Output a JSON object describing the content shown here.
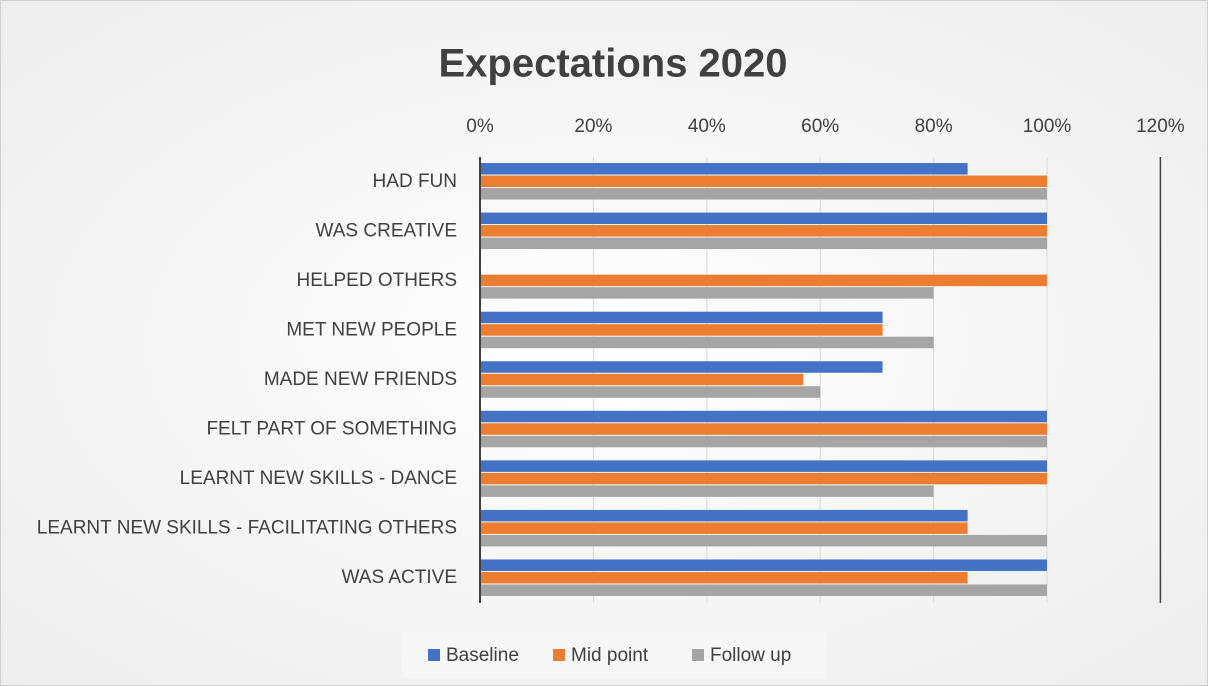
{
  "chart_data": {
    "type": "bar",
    "orientation": "horizontal",
    "title": "Expectations 2020",
    "categories": [
      "HAD FUN",
      "WAS CREATIVE",
      "HELPED OTHERS",
      "MET NEW PEOPLE",
      "MADE NEW FRIENDS",
      "FELT PART OF SOMETHING",
      "LEARNT NEW SKILLS - DANCE",
      "LEARNT NEW SKILLS - FACILITATING OTHERS",
      "WAS ACTIVE"
    ],
    "series": [
      {
        "name": "Baseline",
        "color": "#4472c4",
        "values": [
          86,
          100,
          0,
          71,
          71,
          100,
          100,
          86,
          100
        ]
      },
      {
        "name": "Mid point",
        "color": "#ed7d31",
        "values": [
          100,
          100,
          100,
          71,
          57,
          100,
          100,
          86,
          86
        ]
      },
      {
        "name": "Follow up",
        "color": "#a5a5a5",
        "values": [
          100,
          100,
          80,
          80,
          60,
          100,
          80,
          100,
          100
        ]
      }
    ],
    "xlim": [
      0,
      120
    ],
    "xticks": [
      {
        "value": 0,
        "label": "0%"
      },
      {
        "value": 20,
        "label": "20%"
      },
      {
        "value": 40,
        "label": "40%"
      },
      {
        "value": 60,
        "label": "60%"
      },
      {
        "value": 80,
        "label": "80%"
      },
      {
        "value": 100,
        "label": "100%"
      },
      {
        "value": 120,
        "label": "120%"
      }
    ],
    "grid": true,
    "legend": "bottom"
  }
}
